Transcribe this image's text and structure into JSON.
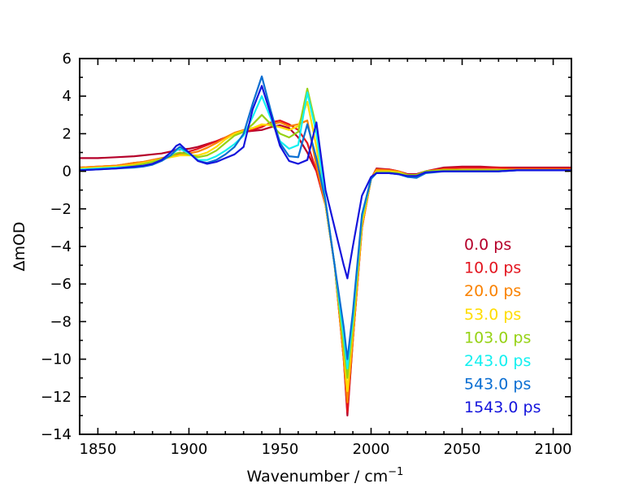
{
  "chart_data": {
    "type": "line",
    "xlabel": "Wavenumber / cm",
    "xlabel_superscript": "−1",
    "ylabel": "ΔmOD",
    "xlim": [
      1840,
      2110
    ],
    "ylim": [
      -14,
      6
    ],
    "xticks": [
      1850,
      1900,
      1950,
      2000,
      2050,
      2100
    ],
    "xtick_labels": [
      "1850",
      "1900",
      "1950",
      "2000",
      "2050",
      "2100"
    ],
    "yticks": [
      6,
      4,
      2,
      0,
      -2,
      -4,
      -6,
      -8,
      -10,
      -12,
      -14
    ],
    "ytick_labels": [
      "6",
      "4",
      "2",
      "0",
      "−2",
      "−4",
      "−6",
      "−8",
      "−10",
      "−12",
      "−14"
    ],
    "x_minor_step": 10,
    "y_minor_step": 1,
    "grid": false,
    "legend_position": "lower-right",
    "x": [
      1840,
      1850,
      1860,
      1870,
      1875,
      1880,
      1885,
      1890,
      1893,
      1895,
      1900,
      1905,
      1910,
      1915,
      1920,
      1925,
      1930,
      1935,
      1940,
      1945,
      1950,
      1955,
      1960,
      1965,
      1970,
      1975,
      1980,
      1985,
      1987,
      1990,
      1995,
      2000,
      2003,
      2010,
      2015,
      2020,
      2025,
      2030,
      2040,
      2050,
      2060,
      2070,
      2080,
      2090,
      2100,
      2110
    ],
    "series": [
      {
        "name": "0.0 ps",
        "color": "#b5002a",
        "values": [
          0.7,
          0.7,
          0.75,
          0.8,
          0.85,
          0.9,
          0.95,
          1.05,
          1.15,
          1.15,
          1.2,
          1.3,
          1.45,
          1.6,
          1.8,
          2.0,
          2.1,
          2.15,
          2.2,
          2.35,
          2.45,
          2.3,
          1.8,
          1.0,
          0.0,
          -1.8,
          -5.0,
          -10.0,
          -13.0,
          -9.0,
          -3.0,
          -0.4,
          0.15,
          0.1,
          0.0,
          -0.15,
          -0.15,
          0.0,
          0.2,
          0.25,
          0.25,
          0.2,
          0.2,
          0.2,
          0.2,
          0.2
        ]
      },
      {
        "name": "10.0 ps",
        "color": "#e3141e",
        "values": [
          0.2,
          0.25,
          0.3,
          0.45,
          0.5,
          0.6,
          0.7,
          0.8,
          0.9,
          0.95,
          1.05,
          1.2,
          1.4,
          1.6,
          1.8,
          2.0,
          2.1,
          2.2,
          2.35,
          2.6,
          2.7,
          2.5,
          2.2,
          1.5,
          0.0,
          -1.8,
          -5.0,
          -10.0,
          -12.8,
          -9.0,
          -3.0,
          -0.4,
          0.1,
          0.1,
          0.0,
          -0.2,
          -0.2,
          0.0,
          0.15,
          0.2,
          0.2,
          0.2,
          0.15,
          0.15,
          0.15,
          0.15
        ]
      },
      {
        "name": "20.0 ps",
        "color": "#fa8200",
        "values": [
          0.2,
          0.25,
          0.3,
          0.45,
          0.5,
          0.6,
          0.7,
          0.8,
          0.85,
          0.9,
          0.95,
          1.05,
          1.25,
          1.5,
          1.8,
          2.05,
          2.2,
          2.3,
          2.45,
          2.5,
          2.6,
          2.4,
          2.5,
          2.7,
          0.3,
          -1.8,
          -5.0,
          -10.0,
          -12.3,
          -9.0,
          -3.0,
          -0.4,
          0.1,
          0.05,
          0.0,
          -0.2,
          -0.2,
          0.0,
          0.1,
          0.1,
          0.1,
          0.1,
          0.1,
          0.1,
          0.1,
          0.1
        ]
      },
      {
        "name": "53.0 ps",
        "color": "#ffdc00",
        "values": [
          0.15,
          0.2,
          0.25,
          0.35,
          0.45,
          0.55,
          0.65,
          0.75,
          0.8,
          0.85,
          0.85,
          0.85,
          1.0,
          1.3,
          1.7,
          2.0,
          2.15,
          2.3,
          2.5,
          2.45,
          2.35,
          2.2,
          2.4,
          3.7,
          1.3,
          -1.8,
          -5.0,
          -9.5,
          -11.7,
          -8.5,
          -2.8,
          -0.4,
          0.0,
          0.0,
          -0.05,
          -0.2,
          -0.2,
          0.0,
          0.05,
          0.05,
          0.05,
          0.05,
          0.05,
          0.05,
          0.05,
          0.05
        ]
      },
      {
        "name": "103.0 ps",
        "color": "#96d214",
        "values": [
          0.1,
          0.15,
          0.2,
          0.3,
          0.4,
          0.5,
          0.65,
          0.8,
          0.95,
          1.0,
          0.9,
          0.75,
          0.85,
          1.1,
          1.5,
          1.9,
          2.1,
          2.5,
          3.0,
          2.5,
          2.0,
          1.8,
          2.1,
          4.4,
          2.3,
          -1.6,
          -5.0,
          -9.3,
          -11.0,
          -8.2,
          -2.5,
          -0.4,
          -0.05,
          -0.05,
          -0.1,
          -0.2,
          -0.2,
          0.0,
          0.05,
          0.05,
          0.05,
          0.05,
          0.05,
          0.05,
          0.05,
          0.05
        ]
      },
      {
        "name": "243.0 ps",
        "color": "#14f0f0",
        "values": [
          0.1,
          0.15,
          0.2,
          0.25,
          0.3,
          0.4,
          0.6,
          0.85,
          1.1,
          1.2,
          0.95,
          0.6,
          0.6,
          0.8,
          1.1,
          1.45,
          1.9,
          2.9,
          4.0,
          2.8,
          1.6,
          1.2,
          1.4,
          4.2,
          2.0,
          -1.6,
          -5.0,
          -8.8,
          -10.5,
          -7.8,
          -2.4,
          -0.4,
          -0.1,
          -0.1,
          -0.15,
          -0.3,
          -0.3,
          -0.05,
          0.0,
          0.0,
          0.0,
          0.0,
          0.05,
          0.05,
          0.05,
          0.05
        ]
      },
      {
        "name": "543.0 ps",
        "color": "#0a6ed2",
        "values": [
          0.05,
          0.1,
          0.15,
          0.2,
          0.25,
          0.35,
          0.55,
          0.85,
          1.15,
          1.3,
          1.0,
          0.55,
          0.45,
          0.6,
          0.9,
          1.3,
          2.0,
          3.6,
          5.05,
          3.2,
          1.5,
          0.8,
          0.75,
          2.5,
          0.7,
          -1.6,
          -5.0,
          -8.3,
          -10.0,
          -7.5,
          -2.3,
          -0.4,
          -0.1,
          -0.1,
          -0.15,
          -0.3,
          -0.35,
          -0.1,
          0.0,
          0.0,
          0.0,
          0.0,
          0.05,
          0.05,
          0.05,
          0.05
        ]
      },
      {
        "name": "1543.0 ps",
        "color": "#1414dc",
        "values": [
          0.05,
          0.1,
          0.15,
          0.25,
          0.3,
          0.4,
          0.6,
          1.0,
          1.35,
          1.45,
          1.0,
          0.55,
          0.4,
          0.5,
          0.7,
          0.9,
          1.3,
          3.3,
          4.55,
          3.0,
          1.35,
          0.55,
          0.4,
          0.6,
          2.6,
          -1.0,
          -3.0,
          -5.0,
          -5.7,
          -4.0,
          -1.3,
          -0.3,
          -0.1,
          -0.1,
          -0.15,
          -0.25,
          -0.25,
          -0.05,
          0.0,
          0.0,
          0.0,
          0.0,
          0.05,
          0.05,
          0.05,
          0.05
        ]
      }
    ]
  }
}
